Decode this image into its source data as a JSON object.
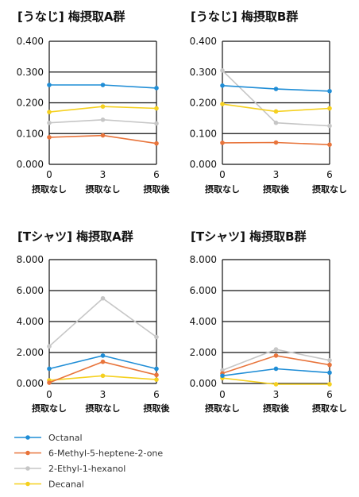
{
  "chart_data": [
    {
      "type": "line",
      "title": "[うなじ] 梅摂取A群",
      "x": [
        0,
        3,
        6
      ],
      "x_categories": [
        "摂取なし",
        "摂取なし",
        "摂取後"
      ],
      "ylim": [
        0,
        0.4
      ],
      "yticks": [
        "0.000",
        "0.100",
        "0.200",
        "0.300",
        "0.400"
      ],
      "series": [
        {
          "name": "Octanal",
          "values": [
            0.258,
            0.258,
            0.248
          ]
        },
        {
          "name": "6-Methyl-5-heptene-2-one",
          "values": [
            0.088,
            0.094,
            0.068
          ]
        },
        {
          "name": "2-Ethyl-1-hexanol",
          "values": [
            0.135,
            0.145,
            0.133
          ]
        },
        {
          "name": "Decanal",
          "values": [
            0.17,
            0.188,
            0.182
          ]
        }
      ]
    },
    {
      "type": "line",
      "title": "[うなじ] 梅摂取B群",
      "x": [
        0,
        3,
        6
      ],
      "x_categories": [
        "摂取なし",
        "摂取後",
        "摂取なし"
      ],
      "ylim": [
        0,
        0.4
      ],
      "yticks": [
        "0.000",
        "0.100",
        "0.200",
        "0.300",
        "0.400"
      ],
      "series": [
        {
          "name": "Octanal",
          "values": [
            0.256,
            0.245,
            0.238
          ]
        },
        {
          "name": "6-Methyl-5-heptene-2-one",
          "values": [
            0.07,
            0.071,
            0.064
          ]
        },
        {
          "name": "2-Ethyl-1-hexanol",
          "values": [
            0.305,
            0.135,
            0.125
          ]
        },
        {
          "name": "Decanal",
          "values": [
            0.196,
            0.172,
            0.182
          ]
        }
      ]
    },
    {
      "type": "line",
      "title": "[Tシャツ] 梅摂取A群",
      "x": [
        0,
        3,
        6
      ],
      "x_categories": [
        "摂取なし",
        "摂取なし",
        "摂取後"
      ],
      "ylim": [
        0,
        8
      ],
      "yticks": [
        "0.000",
        "2.000",
        "4.000",
        "6.000",
        "8.000"
      ],
      "series": [
        {
          "name": "Octanal",
          "values": [
            0.95,
            1.8,
            0.95
          ]
        },
        {
          "name": "6-Methyl-5-heptene-2-one",
          "values": [
            0.05,
            1.4,
            0.55
          ]
        },
        {
          "name": "2-Ethyl-1-hexanol",
          "values": [
            2.4,
            5.5,
            3.0
          ]
        },
        {
          "name": "Decanal",
          "values": [
            0.2,
            0.5,
            0.25
          ]
        }
      ]
    },
    {
      "type": "line",
      "title": "[Tシャツ] 梅摂取B群",
      "x": [
        0,
        3,
        6
      ],
      "x_categories": [
        "摂取なし",
        "摂取後",
        "摂取なし"
      ],
      "ylim": [
        0,
        8
      ],
      "yticks": [
        "0.000",
        "2.000",
        "4.000",
        "6.000",
        "8.000"
      ],
      "series": [
        {
          "name": "Octanal",
          "values": [
            0.5,
            0.95,
            0.7
          ]
        },
        {
          "name": "6-Methyl-5-heptene-2-one",
          "values": [
            0.65,
            1.8,
            1.2
          ]
        },
        {
          "name": "2-Ethyl-1-hexanol",
          "values": [
            0.85,
            2.2,
            1.5
          ]
        },
        {
          "name": "Decanal",
          "values": [
            0.35,
            -0.05,
            -0.05
          ]
        }
      ]
    }
  ],
  "legend": [
    {
      "name": "Octanal",
      "color": "#1f8dd6"
    },
    {
      "name": "6-Methyl-5-heptene-2-one",
      "color": "#e8743b"
    },
    {
      "name": "2-Ethyl-1-hexanol",
      "color": "#c6c6c6"
    },
    {
      "name": "Decanal",
      "color": "#f5d01f"
    }
  ],
  "colors": [
    "#1f8dd6",
    "#e8743b",
    "#c6c6c6",
    "#f5d01f"
  ]
}
